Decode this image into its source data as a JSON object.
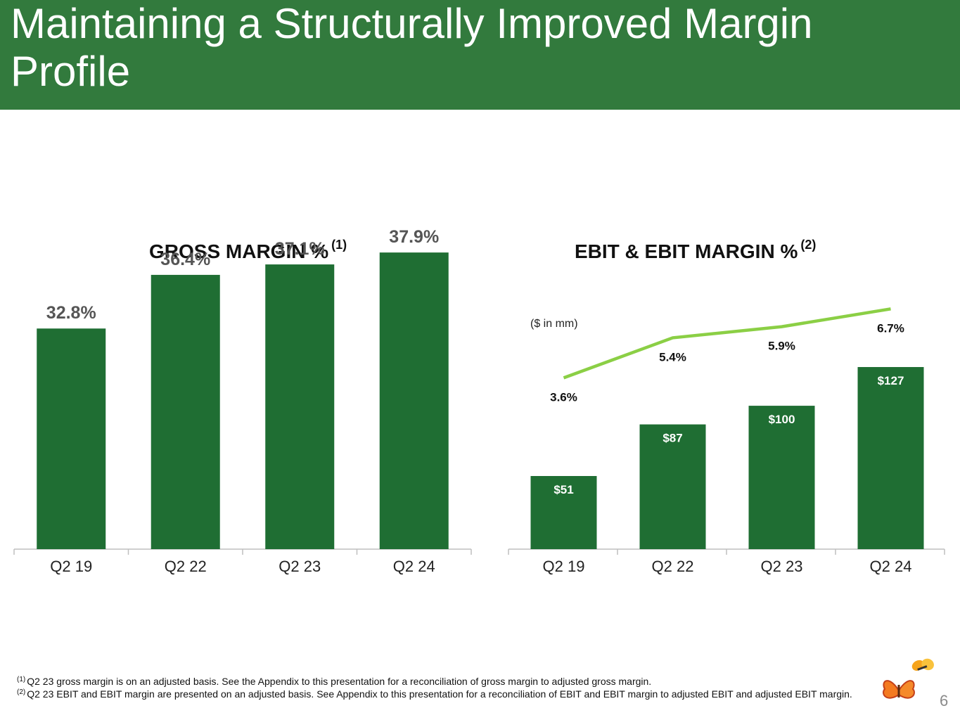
{
  "title": "Maintaining a Structurally Improved Margin Profile",
  "colors": {
    "band": "#327a3d",
    "bar": "#1f6e33",
    "line": "#8bcf45",
    "axis": "#bfbfbf",
    "label_gray": "#555555"
  },
  "chart_data": [
    {
      "type": "bar",
      "title": "GROSS MARGIN %",
      "title_note": "(1)",
      "categories": [
        "Q2 19",
        "Q2 22",
        "Q2 23",
        "Q2 24"
      ],
      "values": [
        32.8,
        36.4,
        37.1,
        37.9
      ],
      "value_labels": [
        "32.8%",
        "36.4%",
        "37.1%",
        "37.9%"
      ],
      "ylim": [
        0,
        40
      ]
    },
    {
      "type": "bar+line",
      "title": "EBIT & EBIT MARGIN %",
      "title_note": "(2)",
      "unit_note": "($ in mm)",
      "categories": [
        "Q2 19",
        "Q2 22",
        "Q2 23",
        "Q2 24"
      ],
      "series": [
        {
          "name": "EBIT",
          "type": "bar",
          "values": [
            51,
            87,
            100,
            127
          ],
          "labels": [
            "$51",
            "$87",
            "$100",
            "$127"
          ]
        },
        {
          "name": "EBIT Margin %",
          "type": "line",
          "values": [
            3.6,
            5.4,
            5.9,
            6.7
          ],
          "labels": [
            "3.6%",
            "5.4%",
            "5.9%",
            "6.7%"
          ]
        }
      ],
      "bar_ylim": [
        0,
        160
      ],
      "line_ylim": [
        -4.1,
        7.5
      ]
    }
  ],
  "footnotes": [
    {
      "mark": "(1)",
      "text": "Q2 23 gross margin is on an adjusted basis.  See the Appendix to this presentation for a reconciliation of gross margin to adjusted gross margin."
    },
    {
      "mark": "(2)",
      "text": "Q2 23 EBIT and EBIT margin are presented on an adjusted basis. See Appendix to this presentation for a reconciliation of EBIT and EBIT margin to adjusted EBIT and adjusted EBIT margin."
    }
  ],
  "page_number": "6",
  "logo_icon": "butterfly-logo-icon"
}
